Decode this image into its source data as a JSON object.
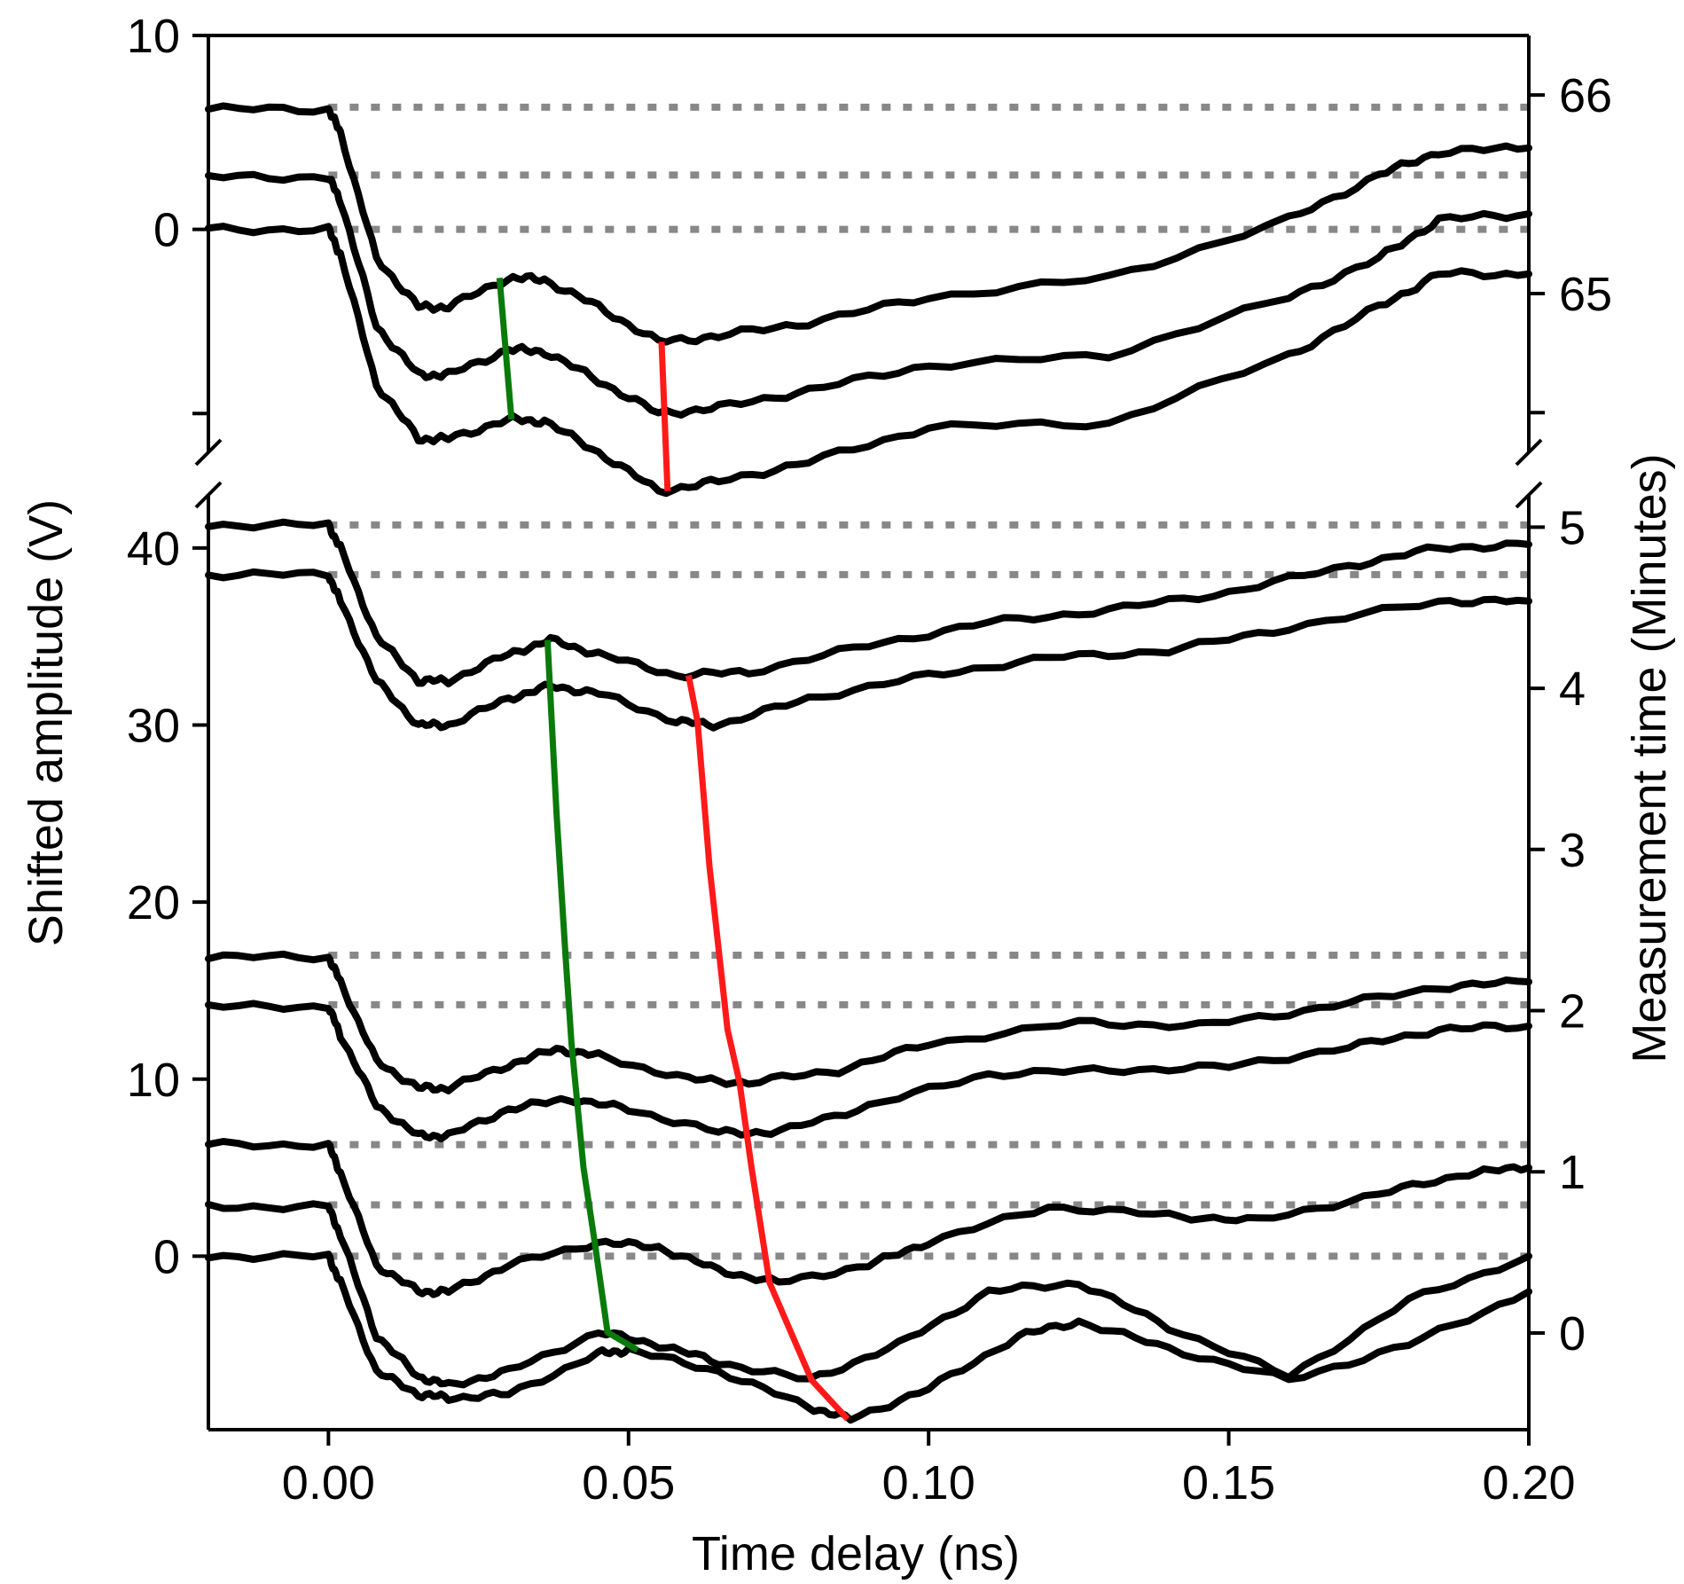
{
  "chart_data": {
    "type": "line",
    "xlabel": "Time delay (ns)",
    "ylabel_left": "Shifted amplitude (V)",
    "ylabel_right": "Measurement time (Minutes)",
    "xlim": [
      -0.02,
      0.2
    ],
    "x_ticks": [
      0.0,
      0.05,
      0.1,
      0.15,
      0.2
    ],
    "x_tick_labels": [
      "0.00",
      "0.05",
      "0.10",
      "0.15",
      "0.20"
    ],
    "colors": {
      "trace": "#000000",
      "reference": "#888888",
      "green_marker": "#0a7a0a",
      "red_marker": "#ff1a1a"
    },
    "panels": [
      {
        "name": "top",
        "ylim_left": [
          -11.5,
          10
        ],
        "left_ticks": [
          10,
          0,
          -9.5
        ],
        "left_tick_labels": [
          "10",
          "0",
          ""
        ],
        "right_ylim": [
          64.2,
          66.3
        ],
        "right_ticks": [
          66,
          65,
          64.4
        ],
        "right_tick_labels": [
          "66",
          "65",
          ""
        ],
        "reference_levels": [
          6.3,
          2.8,
          0
        ],
        "traces": [
          {
            "offset": 6.3,
            "x": [
              -0.02,
              0.0,
              0.002,
              0.008,
              0.015,
              0.02,
              0.03,
              0.036,
              0.045,
              0.055,
              0.065,
              0.08,
              0.1,
              0.13,
              0.16,
              0.175,
              0.185,
              0.2
            ],
            "y": [
              6.2,
              6.2,
              5.0,
              -1.5,
              -4.0,
              -4.0,
              -2.5,
              -2.6,
              -4.0,
              -5.8,
              -5.5,
              -4.8,
              -3.5,
              -2.5,
              0.5,
              2.8,
              4.0,
              4.2
            ]
          },
          {
            "offset": 2.8,
            "x": [
              -0.02,
              0.0,
              0.002,
              0.008,
              0.015,
              0.02,
              0.03,
              0.036,
              0.045,
              0.055,
              0.065,
              0.08,
              0.1,
              0.13,
              0.16,
              0.175,
              0.185,
              0.2
            ],
            "y": [
              2.7,
              2.7,
              1.5,
              -5.0,
              -7.5,
              -7.5,
              -6.2,
              -6.3,
              -7.8,
              -9.5,
              -9.2,
              -8.3,
              -7.0,
              -6.5,
              -3.5,
              -1.5,
              0.5,
              0.8
            ]
          },
          {
            "offset": 0,
            "x": [
              -0.02,
              0.0,
              0.002,
              0.008,
              0.015,
              0.02,
              0.03,
              0.036,
              0.045,
              0.055,
              0.065,
              0.08,
              0.1,
              0.13,
              0.16,
              0.175,
              0.185,
              0.2
            ],
            "y": [
              0.0,
              0.0,
              -1.3,
              -8.0,
              -10.8,
              -10.8,
              -9.8,
              -9.9,
              -11.5,
              -13.5,
              -13.0,
              -12.0,
              -10.2,
              -10.0,
              -6.5,
              -4.0,
              -2.3,
              -2.3
            ]
          }
        ],
        "green_marker": {
          "x": [
            0.0285,
            0.0305
          ],
          "y": [
            -2.5,
            -9.8
          ]
        },
        "red_marker": {
          "x": [
            0.0555,
            0.0565
          ],
          "y": [
            -5.8,
            -13.5
          ]
        }
      },
      {
        "name": "bottom",
        "ylim_left": [
          -9.8,
          43
        ],
        "left_ticks": [
          40,
          30,
          20,
          10,
          0
        ],
        "left_tick_labels": [
          "40",
          "30",
          "20",
          "10",
          "0"
        ],
        "right_ylim": [
          -0.6,
          5.2
        ],
        "right_ticks": [
          5,
          4,
          3,
          2,
          1,
          0
        ],
        "right_tick_labels": [
          "5",
          "4",
          "3",
          "2",
          "1",
          "0"
        ],
        "reference_levels": [
          41.3,
          38.5,
          17,
          14.2,
          6.3,
          2.9,
          0
        ],
        "traces": [
          {
            "offset": 41.3,
            "x": [
              -0.02,
              0.0,
              0.002,
              0.008,
              0.015,
              0.02,
              0.03,
              0.037,
              0.045,
              0.058,
              0.07,
              0.09,
              0.11,
              0.13,
              0.15,
              0.17,
              0.185,
              0.2
            ],
            "y": [
              41.3,
              41.3,
              40.0,
              35.0,
              32.5,
              32.5,
              34.0,
              34.8,
              34.0,
              32.8,
              33.0,
              34.5,
              35.8,
              36.5,
              37.5,
              39.0,
              40.0,
              40.2
            ]
          },
          {
            "offset": 38.5,
            "x": [
              -0.02,
              0.0,
              0.002,
              0.008,
              0.015,
              0.02,
              0.03,
              0.037,
              0.045,
              0.058,
              0.065,
              0.08,
              0.1,
              0.12,
              0.14,
              0.16,
              0.185,
              0.2
            ],
            "y": [
              38.5,
              38.5,
              37.0,
              32.5,
              30.0,
              30.0,
              31.5,
              32.2,
              31.8,
              30.2,
              30.0,
              31.5,
              32.8,
              33.8,
              34.2,
              35.5,
              37.0,
              37.0
            ]
          },
          {
            "offset": 17,
            "x": [
              -0.02,
              0.0,
              0.002,
              0.008,
              0.015,
              0.02,
              0.03,
              0.038,
              0.045,
              0.06,
              0.07,
              0.085,
              0.1,
              0.125,
              0.145,
              0.165,
              0.185,
              0.2
            ],
            "y": [
              16.9,
              16.9,
              15.5,
              11.0,
              9.5,
              9.5,
              10.8,
              11.7,
              11.3,
              10.0,
              9.8,
              10.5,
              12.0,
              13.2,
              13.0,
              14.0,
              15.2,
              15.5
            ]
          },
          {
            "offset": 14.2,
            "x": [
              -0.02,
              0.0,
              0.002,
              0.008,
              0.015,
              0.02,
              0.03,
              0.04,
              0.05,
              0.065,
              0.075,
              0.09,
              0.11,
              0.13,
              0.15,
              0.17,
              0.185,
              0.2
            ],
            "y": [
              14.1,
              14.1,
              12.5,
              8.5,
              6.8,
              6.8,
              8.3,
              8.9,
              8.3,
              7.0,
              7.0,
              8.5,
              10.3,
              10.5,
              10.7,
              11.8,
              12.8,
              13.0
            ]
          },
          {
            "offset": 6.3,
            "x": [
              -0.02,
              0.0,
              0.002,
              0.008,
              0.015,
              0.02,
              0.03,
              0.045,
              0.055,
              0.065,
              0.075,
              0.09,
              0.1,
              0.12,
              0.14,
              0.155,
              0.175,
              0.19,
              0.2
            ],
            "y": [
              6.3,
              6.3,
              4.7,
              -0.5,
              -2.0,
              -2.0,
              -0.5,
              0.8,
              0.5,
              -0.8,
              -1.5,
              -0.5,
              0.8,
              2.8,
              2.3,
              2.0,
              3.5,
              4.7,
              5.0
            ]
          },
          {
            "offset": 2.9,
            "x": [
              -0.02,
              0.0,
              0.002,
              0.008,
              0.015,
              0.02,
              0.03,
              0.045,
              0.055,
              0.065,
              0.08,
              0.095,
              0.11,
              0.125,
              0.14,
              0.16,
              0.18,
              0.2
            ],
            "y": [
              2.8,
              2.8,
              1.2,
              -4.5,
              -6.8,
              -7.3,
              -6.5,
              -4.3,
              -5.0,
              -6.0,
              -7.0,
              -5.0,
              -2.0,
              -1.5,
              -4.0,
              -6.8,
              -2.5,
              0.0
            ]
          },
          {
            "offset": 0,
            "x": [
              -0.02,
              0.0,
              0.002,
              0.008,
              0.015,
              0.02,
              0.03,
              0.045,
              0.05,
              0.065,
              0.08,
              0.087,
              0.1,
              0.115,
              0.125,
              0.14,
              0.16,
              0.18,
              0.2
            ],
            "y": [
              0.0,
              0.0,
              -1.5,
              -6.5,
              -7.8,
              -8.0,
              -7.8,
              -5.5,
              -5.3,
              -6.5,
              -8.5,
              -9.2,
              -7.5,
              -4.5,
              -3.7,
              -5.2,
              -7.0,
              -5.0,
              -2.0
            ]
          }
        ],
        "green_marker": {
          "x": [
            0.0365,
            0.038,
            0.0395,
            0.0405,
            0.0425,
            0.0445,
            0.0465,
            0.0515
          ],
          "y": [
            34.8,
            25.0,
            17.0,
            12.0,
            5.0,
            0.5,
            -4.3,
            -5.3
          ]
        },
        "red_marker": {
          "x": [
            0.06,
            0.0615,
            0.0635,
            0.0665,
            0.0685,
            0.0705,
            0.0735,
            0.0805,
            0.0865
          ],
          "y": [
            32.8,
            30.2,
            22.0,
            12.8,
            9.8,
            5.0,
            -1.5,
            -7.0,
            -9.2
          ]
        }
      }
    ]
  }
}
